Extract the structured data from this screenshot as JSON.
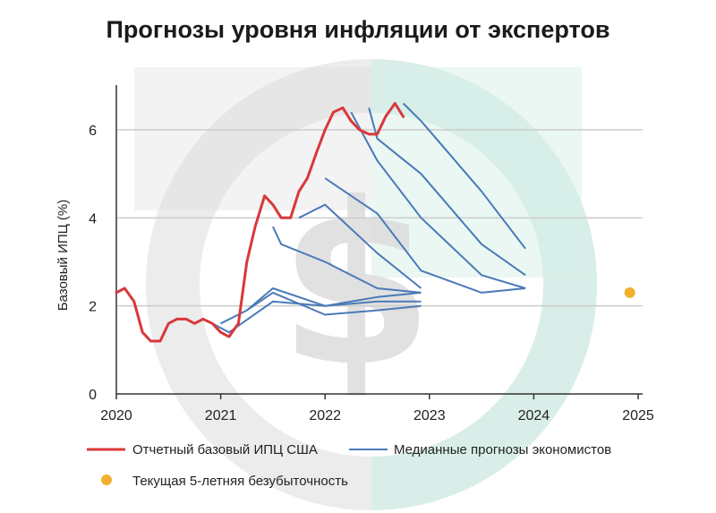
{
  "colors": {
    "actual": "#d9383a",
    "forecast": "#4a7ab8",
    "breakeven": "#f2b02f",
    "grid": "#cccccc",
    "axis": "#333333",
    "watermark_gray": "#dcdcdc",
    "watermark_teal": "#d5efe8"
  },
  "chart_data": {
    "type": "line",
    "title": "Прогнозы уровня инфляции от экспертов",
    "ylabel": "Базовый ИПЦ (%)",
    "xlabel": "",
    "xlim": [
      2020,
      2025.2
    ],
    "ylim": [
      0,
      7
    ],
    "x_ticks": [
      2020,
      2021,
      2022,
      2023,
      2024,
      2025
    ],
    "y_ticks": [
      0,
      2,
      4,
      6
    ],
    "grid": "horizontal",
    "legend_position": "bottom",
    "legend": {
      "actual_label": "Отчетный базовый ИПЦ США",
      "forecast_label": "Медианные прогнозы экономистов",
      "breakeven_label": "Текущая 5-летняя безубыточность"
    },
    "actual_series": {
      "name": "Отчетный базовый ИПЦ США",
      "x": [
        2020.0,
        2020.08,
        2020.17,
        2020.25,
        2020.33,
        2020.42,
        2020.5,
        2020.58,
        2020.67,
        2020.75,
        2020.83,
        2020.92,
        2021.0,
        2021.08,
        2021.17,
        2021.25,
        2021.33,
        2021.42,
        2021.5,
        2021.58,
        2021.67,
        2021.75,
        2021.83,
        2021.92,
        2022.0,
        2022.08,
        2022.17,
        2022.25,
        2022.33,
        2022.42,
        2022.5,
        2022.58,
        2022.67,
        2022.75
      ],
      "y": [
        2.3,
        2.4,
        2.1,
        1.4,
        1.2,
        1.2,
        1.6,
        1.7,
        1.7,
        1.6,
        1.7,
        1.6,
        1.4,
        1.3,
        1.6,
        3.0,
        3.8,
        4.5,
        4.3,
        4.0,
        4.0,
        4.6,
        4.9,
        5.5,
        6.0,
        6.4,
        6.5,
        6.2,
        6.0,
        5.9,
        5.9,
        6.3,
        6.6,
        6.3
      ]
    },
    "forecast_series": [
      {
        "x": [
          2020.92,
          2021.08,
          2021.5,
          2022.0,
          2022.5,
          2022.92
        ],
        "y": [
          1.6,
          1.4,
          2.1,
          2.0,
          2.1,
          2.1
        ]
      },
      {
        "x": [
          2021.0,
          2021.25,
          2021.5,
          2022.0,
          2022.5,
          2022.92
        ],
        "y": [
          1.6,
          1.9,
          2.3,
          1.8,
          1.9,
          2.0
        ]
      },
      {
        "x": [
          2021.25,
          2021.5,
          2022.0,
          2022.5,
          2022.92
        ],
        "y": [
          1.9,
          2.4,
          2.0,
          2.2,
          2.3
        ]
      },
      {
        "x": [
          2021.5,
          2021.58,
          2022.0,
          2022.5,
          2022.92
        ],
        "y": [
          3.8,
          3.4,
          3.0,
          2.4,
          2.3
        ]
      },
      {
        "x": [
          2021.75,
          2022.0,
          2022.5,
          2022.92
        ],
        "y": [
          4.0,
          4.3,
          3.2,
          2.4
        ]
      },
      {
        "x": [
          2022.0,
          2022.5,
          2022.92,
          2023.5,
          2023.92
        ],
        "y": [
          4.9,
          4.1,
          2.8,
          2.3,
          2.4
        ]
      },
      {
        "x": [
          2022.25,
          2022.5,
          2022.92,
          2023.5,
          2023.92
        ],
        "y": [
          6.4,
          5.3,
          4.0,
          2.7,
          2.4
        ]
      },
      {
        "x": [
          2022.42,
          2022.5,
          2022.92,
          2023.5,
          2023.92
        ],
        "y": [
          6.5,
          5.8,
          5.0,
          3.4,
          2.7
        ]
      },
      {
        "x": [
          2022.75,
          2022.92,
          2023.5,
          2023.92
        ],
        "y": [
          6.6,
          6.2,
          4.6,
          3.3
        ]
      }
    ],
    "breakeven_point": {
      "x": 2024.92,
      "y": 2.3
    }
  }
}
